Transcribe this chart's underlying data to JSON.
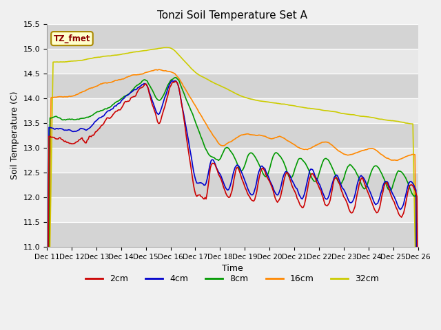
{
  "title": "Tonzi Soil Temperature Set A",
  "xlabel": "Time",
  "ylabel": "Soil Temperature (C)",
  "ylim": [
    11.0,
    15.5
  ],
  "x_tick_labels": [
    "Dec 11",
    "Dec 12",
    "Dec 13",
    "Dec 14",
    "Dec 15",
    "Dec 16",
    "Dec 17",
    "Dec 18",
    "Dec 19",
    "Dec 20",
    "Dec 21",
    "Dec 22",
    "Dec 23",
    "Dec 24",
    "Dec 25",
    "Dec 26"
  ],
  "yticks": [
    11.0,
    11.5,
    12.0,
    12.5,
    13.0,
    13.5,
    14.0,
    14.5,
    15.0,
    15.5
  ],
  "background_color": "#e8e8e8",
  "fig_facecolor": "#f0f0f0",
  "legend_label": "TZ_fmet",
  "legend_label_color": "#8B0000",
  "legend_box_facecolor": "#ffffcc",
  "legend_box_edgecolor": "#aa8800",
  "series_colors": {
    "2cm": "#cc0000",
    "4cm": "#0000cc",
    "8cm": "#009900",
    "16cm": "#ff8800",
    "32cm": "#cccc00"
  },
  "series_labels": [
    "2cm",
    "4cm",
    "8cm",
    "16cm",
    "32cm"
  ]
}
